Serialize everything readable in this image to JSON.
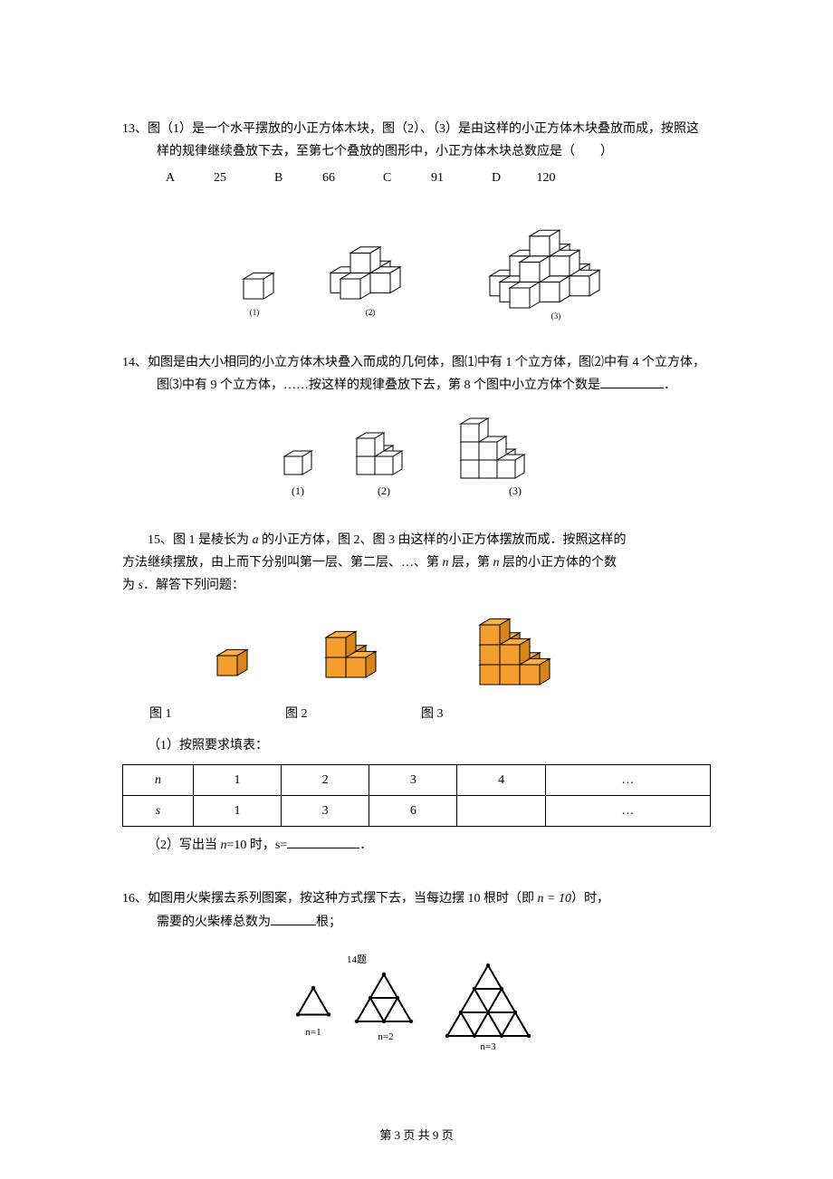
{
  "p13": {
    "num": "13、",
    "text1": "图（1）是一个水平摆放的小正方体木块，图（2）、（3）是由这样的小正方体木块叠放而成，按照这样的规律继续叠放下去，至第七个叠放的图形中，小正方体木块总数应是（　　）",
    "choices": [
      {
        "label": "A",
        "val": "25"
      },
      {
        "label": "B",
        "val": "66"
      },
      {
        "label": "C",
        "val": "91"
      },
      {
        "label": "D",
        "val": "120"
      }
    ],
    "fig_labels": [
      "(1)",
      "(2)",
      "(3)"
    ]
  },
  "p14": {
    "num": "14、",
    "text1": "如图是由大小相同的小立方体木块叠入而成的几何体，图⑴中有 1 个立方体，图⑵中有 4 个立方体，图⑶中有 9 个立方体，……按这样的规律叠放下去，第 8 个图中小立方体个数是",
    "text2": "．",
    "fig_labels": [
      "(1)",
      "(2)",
      "(3)"
    ]
  },
  "p15": {
    "num": "15、",
    "line1_a": "图 1 是棱长为 ",
    "line1_b": " 的小正方体，图 2、图 3 由这样的小正方体摆放而成．按照这样的",
    "line2_a": "方法继续摆放，由上而下分别叫第一层、第二层、…、第 ",
    "line2_b": " 层，第 ",
    "line2_c": " 层的小正方体的个数",
    "line3_a": "为 ",
    "line3_b": "．解答下列问题：",
    "italic_a": "a",
    "italic_n": "n",
    "italic_s": "s",
    "fig_labels": [
      "图 1",
      "图 2",
      "图 3"
    ],
    "sub1": "（1）按照要求填表：",
    "table": {
      "header": [
        "n",
        "1",
        "2",
        "3",
        "4",
        "…"
      ],
      "row": [
        "s",
        "1",
        "3",
        "6",
        "",
        "…"
      ]
    },
    "sub2_a": "（2）写出当 ",
    "sub2_b": "=10 时，s=",
    "sub2_c": "．",
    "italic_n2": "n"
  },
  "p16": {
    "num": "16、",
    "text1_a": "如图用火柴摆去系列图案，按这种方式摆下去，当每边摆 10 根时（即 ",
    "text1_b": "）时，",
    "eq": "n = 10",
    "text2_a": "需要的火柴棒总数为",
    "text2_b": "根；",
    "fig_title": "14题",
    "fig_labels": [
      "n=1",
      "n=2",
      "n=3"
    ]
  },
  "colors": {
    "cube_orange_top": "#f7b04a",
    "cube_orange_front": "#f59e2e",
    "cube_orange_side": "#d8841a",
    "cube_white": "#ffffff",
    "cube_stroke": "#000000",
    "triangle_stroke": "#000000"
  },
  "footer": "第 3 页 共 9 页"
}
